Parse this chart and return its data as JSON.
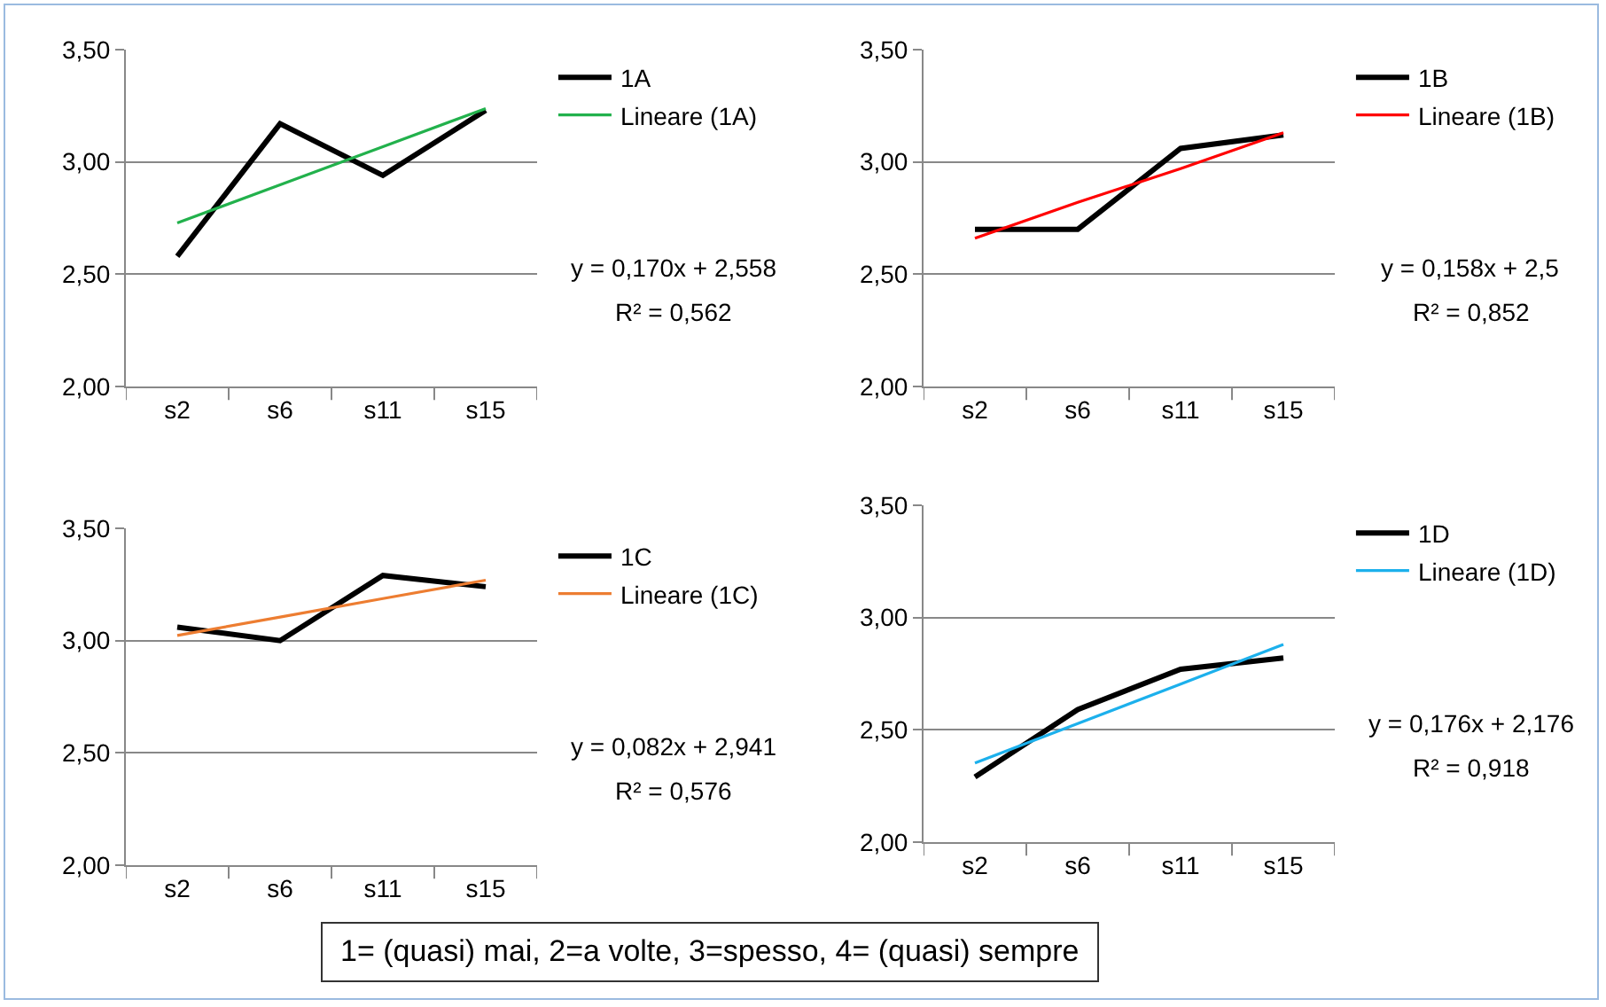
{
  "chart_data": [
    {
      "type": "line",
      "categories": [
        "s2",
        "s6",
        "s11",
        "s15"
      ],
      "ylim": [
        2,
        3.5
      ],
      "yticks": [
        {
          "value": 2,
          "label": "2,00"
        },
        {
          "value": 2.5,
          "label": "2,50"
        },
        {
          "value": 3,
          "label": "3,00"
        },
        {
          "value": 3.5,
          "label": "3,50"
        }
      ],
      "grid": "y",
      "legend": "right",
      "marker": "none",
      "line_style": "solid",
      "series": [
        {
          "name": "1A",
          "color": "#000000",
          "values": [
            2.58,
            3.17,
            2.94,
            3.23
          ]
        },
        {
          "name": "Lineare (1A)",
          "color": "#22b14c",
          "values": [
            2.728,
            2.898,
            3.068,
            3.238
          ]
        }
      ],
      "annotations": [
        "y = 0,170x + 2,558",
        "R² = 0,562"
      ]
    },
    {
      "type": "line",
      "categories": [
        "s2",
        "s6",
        "s11",
        "s15"
      ],
      "ylim": [
        2,
        3.5
      ],
      "yticks": [
        {
          "value": 2,
          "label": "2,00"
        },
        {
          "value": 2.5,
          "label": "2,50"
        },
        {
          "value": 3,
          "label": "3,00"
        },
        {
          "value": 3.5,
          "label": "3,50"
        }
      ],
      "grid": "y",
      "legend": "right",
      "marker": "none",
      "line_style": "solid",
      "series": [
        {
          "name": "1B",
          "color": "#000000",
          "values": [
            2.7,
            2.7,
            3.06,
            3.12
          ]
        },
        {
          "name": "Lineare (1B)",
          "color": "#ff0000",
          "values": [
            2.66,
            2.82,
            2.97,
            3.13
          ]
        }
      ],
      "annotations": [
        "y = 0,158x + 2,5",
        "R² = 0,852"
      ]
    },
    {
      "type": "line",
      "categories": [
        "s2",
        "s6",
        "s11",
        "s15"
      ],
      "ylim": [
        2,
        3.5
      ],
      "yticks": [
        {
          "value": 2,
          "label": "2,00"
        },
        {
          "value": 2.5,
          "label": "2,50"
        },
        {
          "value": 3,
          "label": "3,00"
        },
        {
          "value": 3.5,
          "label": "3,50"
        }
      ],
      "grid": "y",
      "legend": "right",
      "marker": "none",
      "line_style": "solid",
      "series": [
        {
          "name": "1C",
          "color": "#000000",
          "values": [
            3.06,
            3.0,
            3.29,
            3.24
          ]
        },
        {
          "name": "Lineare (1C)",
          "color": "#ed7d31",
          "values": [
            3.023,
            3.105,
            3.187,
            3.269
          ]
        }
      ],
      "annotations": [
        "y = 0,082x + 2,941",
        "R² = 0,576"
      ]
    },
    {
      "type": "line",
      "categories": [
        "s2",
        "s6",
        "s11",
        "s15"
      ],
      "ylim": [
        2,
        3.5
      ],
      "yticks": [
        {
          "value": 2,
          "label": "2,00"
        },
        {
          "value": 2.5,
          "label": "2,50"
        },
        {
          "value": 3,
          "label": "3,00"
        },
        {
          "value": 3.5,
          "label": "3,50"
        }
      ],
      "grid": "y",
      "legend": "right",
      "marker": "none",
      "line_style": "solid",
      "series": [
        {
          "name": "1D",
          "color": "#000000",
          "values": [
            2.29,
            2.59,
            2.77,
            2.82
          ]
        },
        {
          "name": "Lineare (1D)",
          "color": "#1cb0ec",
          "values": [
            2.352,
            2.528,
            2.704,
            2.88
          ]
        }
      ],
      "annotations": [
        "y = 0,176x + 2,176",
        "R² = 0,918",
        "1= (quasi) mai, 2=a volte, 3=spesso, 4= (quasi) sempre"
      ]
    }
  ]
}
